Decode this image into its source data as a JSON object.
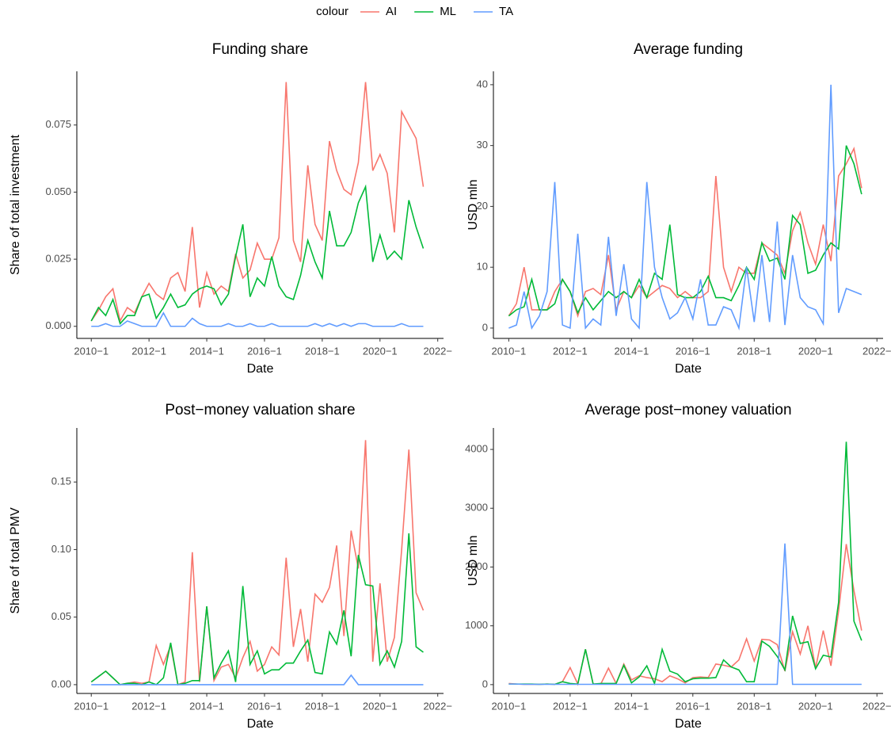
{
  "chart_data": [
    {
      "type": "line",
      "title": "Funding share",
      "x_label": "Date",
      "y_label": "Share of total investment",
      "legend_title": "colour",
      "legend": "top",
      "x": [
        2010,
        2010.25,
        2010.5,
        2010.75,
        2011,
        2011.25,
        2011.5,
        2011.75,
        2012,
        2012.25,
        2012.5,
        2012.75,
        2013,
        2013.25,
        2013.5,
        2013.75,
        2014,
        2014.25,
        2014.5,
        2014.75,
        2015,
        2015.25,
        2015.5,
        2015.75,
        2016,
        2016.25,
        2016.5,
        2016.75,
        2017,
        2017.25,
        2017.5,
        2017.75,
        2018,
        2018.25,
        2018.5,
        2018.75,
        2019,
        2019.25,
        2019.5,
        2019.75,
        2020,
        2020.25,
        2020.5,
        2020.75,
        2021,
        2021.25,
        2021.5
      ],
      "xlim": [
        2009.5,
        2022.2
      ],
      "xticks": [
        {
          "value": 2010,
          "label": "2010−1"
        },
        {
          "value": 2012,
          "label": "2012−1"
        },
        {
          "value": 2014,
          "label": "2014−1"
        },
        {
          "value": 2016,
          "label": "2016−1"
        },
        {
          "value": 2018,
          "label": "2018−1"
        },
        {
          "value": 2020,
          "label": "2020−1"
        },
        {
          "value": 2022,
          "label": "2022−"
        }
      ],
      "ylim": [
        -0.0045,
        0.095
      ],
      "yticks": [
        {
          "value": 0,
          "label": "0.000"
        },
        {
          "value": 0.025,
          "label": "0.025"
        },
        {
          "value": 0.05,
          "label": "0.050"
        },
        {
          "value": 0.075,
          "label": "0.075"
        }
      ],
      "series": [
        {
          "name": "AI",
          "color": "#F8766D",
          "values": [
            0.002,
            0.006,
            0.011,
            0.014,
            0.002,
            0.007,
            0.005,
            0.011,
            0.016,
            0.012,
            0.01,
            0.018,
            0.02,
            0.013,
            0.037,
            0.007,
            0.02,
            0.012,
            0.015,
            0.013,
            0.027,
            0.018,
            0.021,
            0.031,
            0.025,
            0.025,
            0.033,
            0.091,
            0.032,
            0.024,
            0.06,
            0.038,
            0.032,
            0.069,
            0.058,
            0.051,
            0.049,
            0.061,
            0.091,
            0.058,
            0.064,
            0.057,
            0.035,
            0.08,
            0.075,
            0.07,
            0.052
          ]
        },
        {
          "name": "ML",
          "color": "#00BA38",
          "values": [
            0.002,
            0.007,
            0.004,
            0.01,
            0.001,
            0.004,
            0.004,
            0.011,
            0.012,
            0.003,
            0.007,
            0.012,
            0.007,
            0.008,
            0.012,
            0.014,
            0.015,
            0.014,
            0.008,
            0.012,
            0.026,
            0.038,
            0.011,
            0.018,
            0.015,
            0.026,
            0.015,
            0.011,
            0.01,
            0.019,
            0.032,
            0.024,
            0.018,
            0.043,
            0.03,
            0.03,
            0.035,
            0.046,
            0.052,
            0.024,
            0.034,
            0.025,
            0.028,
            0.025,
            0.047,
            0.037,
            0.029
          ]
        },
        {
          "name": "TA",
          "color": "#619CFF",
          "values": [
            0.0,
            0.0,
            0.001,
            0.0,
            0.0,
            0.002,
            0.001,
            0.0,
            0.0,
            0.0,
            0.005,
            0.0,
            0.0,
            0.0,
            0.003,
            0.001,
            0.0,
            0.0,
            0.0,
            0.001,
            0.0,
            0.0,
            0.001,
            0.0,
            0.0,
            0.001,
            0.0,
            0.0,
            0.0,
            0.0,
            0.0,
            0.001,
            0.0,
            0.001,
            0.0,
            0.001,
            0.0,
            0.001,
            0.001,
            0.0,
            0.0,
            0.0,
            0.0,
            0.001,
            0.0,
            0.0,
            0.0
          ]
        }
      ]
    },
    {
      "type": "line",
      "title": "Average funding",
      "x_label": "Date",
      "y_label": "USD mln",
      "x": [
        2010,
        2010.25,
        2010.5,
        2010.75,
        2011,
        2011.25,
        2011.5,
        2011.75,
        2012,
        2012.25,
        2012.5,
        2012.75,
        2013,
        2013.25,
        2013.5,
        2013.75,
        2014,
        2014.25,
        2014.5,
        2014.75,
        2015,
        2015.25,
        2015.5,
        2015.75,
        2016,
        2016.25,
        2016.5,
        2016.75,
        2017,
        2017.25,
        2017.5,
        2017.75,
        2018,
        2018.25,
        2018.5,
        2018.75,
        2019,
        2019.25,
        2019.5,
        2019.75,
        2020,
        2020.25,
        2020.5,
        2020.75,
        2021,
        2021.25,
        2021.5
      ],
      "xlim": [
        2009.5,
        2022.2
      ],
      "xticks": [
        {
          "value": 2010,
          "label": "2010−1"
        },
        {
          "value": 2012,
          "label": "2012−1"
        },
        {
          "value": 2014,
          "label": "2014−1"
        },
        {
          "value": 2016,
          "label": "2016−1"
        },
        {
          "value": 2018,
          "label": "2018−1"
        },
        {
          "value": 2020,
          "label": "2020−1"
        },
        {
          "value": 2022,
          "label": "2022−"
        }
      ],
      "ylim": [
        -1.7,
        42.2
      ],
      "yticks": [
        0,
        10,
        20,
        30,
        40
      ],
      "series": [
        {
          "name": "AI",
          "color": "#F8766D",
          "values": [
            2,
            4,
            10,
            3,
            3,
            3,
            6,
            8,
            6,
            2,
            6,
            6.5,
            5.5,
            12,
            3,
            6,
            5,
            7,
            5,
            6,
            7,
            6.5,
            5,
            6,
            5,
            5,
            6,
            25,
            10,
            6,
            10,
            9,
            9,
            14,
            13,
            12,
            9,
            16,
            19,
            14,
            10.5,
            17,
            11,
            25,
            27,
            29.5,
            23
          ]
        },
        {
          "name": "ML",
          "color": "#00BA38",
          "values": [
            2,
            3,
            3.5,
            8,
            3,
            3,
            4,
            8,
            6,
            2.5,
            5,
            3,
            4.5,
            6,
            5,
            6,
            5,
            8,
            5,
            9,
            8,
            17,
            5.5,
            5,
            5,
            6,
            8.5,
            5,
            5,
            4.5,
            7,
            10,
            8,
            14,
            11,
            11.5,
            8,
            18.5,
            17,
            9,
            9.5,
            12,
            14,
            13,
            30,
            27,
            22
          ]
        },
        {
          "name": "TA",
          "color": "#619CFF",
          "values": [
            0,
            0.5,
            6,
            0,
            2,
            6,
            24,
            0.5,
            0,
            15.5,
            0,
            1.5,
            0.5,
            15,
            2,
            10.5,
            1.5,
            0,
            24,
            10,
            5,
            1.5,
            2.5,
            5,
            1.5,
            8,
            0.5,
            0.5,
            3.5,
            3,
            0,
            10,
            1,
            12,
            1,
            17.5,
            0.5,
            12,
            5,
            3.5,
            3,
            0.7,
            40,
            2.5,
            6.5,
            6,
            5.5
          ]
        }
      ]
    },
    {
      "type": "line",
      "title": "Post−money valuation share",
      "x_label": "Date",
      "y_label": "Share of total PMV",
      "x": [
        2010,
        2010.25,
        2010.5,
        2010.75,
        2011,
        2011.25,
        2011.5,
        2011.75,
        2012,
        2012.25,
        2012.5,
        2012.75,
        2013,
        2013.25,
        2013.5,
        2013.75,
        2014,
        2014.25,
        2014.5,
        2014.75,
        2015,
        2015.25,
        2015.5,
        2015.75,
        2016,
        2016.25,
        2016.5,
        2016.75,
        2017,
        2017.25,
        2017.5,
        2017.75,
        2018,
        2018.25,
        2018.5,
        2018.75,
        2019,
        2019.25,
        2019.5,
        2019.75,
        2020,
        2020.25,
        2020.5,
        2020.75,
        2021,
        2021.25,
        2021.5
      ],
      "xlim": [
        2009.5,
        2022.2
      ],
      "xticks": [
        {
          "value": 2010,
          "label": "2010−1"
        },
        {
          "value": 2012,
          "label": "2012−1"
        },
        {
          "value": 2014,
          "label": "2014−1"
        },
        {
          "value": 2016,
          "label": "2016−1"
        },
        {
          "value": 2018,
          "label": "2018−1"
        },
        {
          "value": 2020,
          "label": "2020−1"
        },
        {
          "value": 2022,
          "label": "2022−"
        }
      ],
      "ylim": [
        -0.0065,
        0.19
      ],
      "yticks": [
        {
          "value": 0,
          "label": "0.00"
        },
        {
          "value": 0.05,
          "label": "0.05"
        },
        {
          "value": 0.1,
          "label": "0.10"
        },
        {
          "value": 0.15,
          "label": "0.15"
        }
      ],
      "series": [
        {
          "name": "AI",
          "color": "#F8766D",
          "values": [
            0.002,
            0.006,
            0.01,
            0.005,
            0.0,
            0.001,
            0.002,
            0.001,
            0.002,
            0.029,
            0.015,
            0.029,
            0.0,
            0.002,
            0.098,
            0.002,
            0.058,
            0.003,
            0.013,
            0.015,
            0.005,
            0.02,
            0.032,
            0.01,
            0.015,
            0.028,
            0.022,
            0.094,
            0.028,
            0.056,
            0.017,
            0.067,
            0.061,
            0.072,
            0.103,
            0.036,
            0.114,
            0.086,
            0.181,
            0.017,
            0.075,
            0.017,
            0.035,
            0.1,
            0.174,
            0.068,
            0.055
          ]
        },
        {
          "name": "ML",
          "color": "#00BA38",
          "values": [
            0.002,
            0.006,
            0.01,
            0.005,
            0.0,
            0.001,
            0.001,
            0.0,
            0.002,
            0.0,
            0.005,
            0.031,
            0.0,
            0.001,
            0.003,
            0.003,
            0.058,
            0.005,
            0.016,
            0.025,
            0.002,
            0.073,
            0.015,
            0.025,
            0.008,
            0.011,
            0.011,
            0.016,
            0.016,
            0.025,
            0.033,
            0.009,
            0.008,
            0.039,
            0.03,
            0.055,
            0.021,
            0.096,
            0.074,
            0.073,
            0.015,
            0.025,
            0.013,
            0.032,
            0.112,
            0.028,
            0.024
          ]
        },
        {
          "name": "TA",
          "color": "#619CFF",
          "values": [
            0,
            0,
            0,
            0,
            0,
            0,
            0,
            0,
            0,
            0,
            0,
            0,
            0,
            0,
            0,
            0,
            0,
            0,
            0,
            0,
            0,
            0,
            0,
            0,
            0,
            0,
            0,
            0,
            0,
            0,
            0,
            0,
            0,
            0,
            0,
            0,
            0.007,
            0,
            0,
            0,
            0,
            0,
            0,
            0,
            0,
            0,
            0
          ]
        }
      ]
    },
    {
      "type": "line",
      "title": "Average post−money valuation",
      "x_label": "Date",
      "y_label": "USD mln",
      "x": [
        2010,
        2010.25,
        2010.5,
        2010.75,
        2011,
        2011.25,
        2011.5,
        2011.75,
        2012,
        2012.25,
        2012.5,
        2012.75,
        2013,
        2013.25,
        2013.5,
        2013.75,
        2014,
        2014.25,
        2014.5,
        2014.75,
        2015,
        2015.25,
        2015.5,
        2015.75,
        2016,
        2016.25,
        2016.5,
        2016.75,
        2017,
        2017.25,
        2017.5,
        2017.75,
        2018,
        2018.25,
        2018.5,
        2018.75,
        2019,
        2019.25,
        2019.5,
        2019.75,
        2020,
        2020.25,
        2020.5,
        2020.75,
        2021,
        2021.25,
        2021.5
      ],
      "xlim": [
        2009.5,
        2022.2
      ],
      "xticks": [
        {
          "value": 2010,
          "label": "2010−1"
        },
        {
          "value": 2012,
          "label": "2012−1"
        },
        {
          "value": 2014,
          "label": "2014−1"
        },
        {
          "value": 2016,
          "label": "2016−1"
        },
        {
          "value": 2018,
          "label": "2018−1"
        },
        {
          "value": 2020,
          "label": "2020−1"
        },
        {
          "value": 2022,
          "label": "2022−"
        }
      ],
      "ylim": [
        -150,
        4365
      ],
      "yticks": [
        0,
        1000,
        2000,
        3000,
        4000
      ],
      "series": [
        {
          "name": "AI",
          "color": "#F8766D",
          "values": [
            20,
            10,
            5,
            5,
            5,
            10,
            5,
            50,
            290,
            10,
            600,
            10,
            10,
            280,
            20,
            350,
            80,
            150,
            120,
            100,
            50,
            150,
            100,
            30,
            120,
            130,
            120,
            350,
            330,
            300,
            420,
            780,
            400,
            770,
            760,
            680,
            230,
            900,
            520,
            1000,
            280,
            920,
            320,
            1250,
            2390,
            1600,
            920
          ]
        },
        {
          "name": "ML",
          "color": "#00BA38",
          "values": [
            10,
            10,
            10,
            10,
            5,
            10,
            5,
            50,
            20,
            10,
            600,
            10,
            20,
            20,
            20,
            330,
            30,
            130,
            320,
            20,
            600,
            230,
            180,
            50,
            100,
            110,
            110,
            120,
            420,
            300,
            250,
            50,
            50,
            740,
            650,
            480,
            250,
            1170,
            700,
            730,
            270,
            500,
            470,
            1400,
            4130,
            1080,
            750
          ]
        },
        {
          "name": "TA",
          "color": "#619CFF",
          "values": [
            10,
            10,
            5,
            5,
            5,
            5,
            5,
            5,
            5,
            5,
            5,
            5,
            5,
            5,
            5,
            5,
            5,
            5,
            5,
            5,
            5,
            5,
            5,
            5,
            5,
            5,
            5,
            5,
            5,
            5,
            5,
            5,
            5,
            5,
            5,
            5,
            2400,
            5,
            5,
            5,
            5,
            5,
            5,
            5,
            5,
            5,
            5
          ]
        }
      ]
    }
  ]
}
